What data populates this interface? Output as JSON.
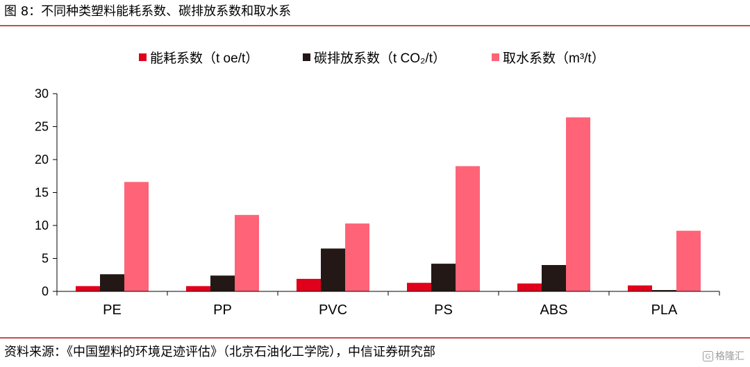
{
  "header": {
    "title": "图 8：不同种类塑料能耗系数、碳排放系数和取水系"
  },
  "footer": {
    "source": "资料来源：《中国塑料的环境足迹评估》（北京石油化工学院），中信证券研究部",
    "watermark": "格隆汇",
    "watermark_icon": "G"
  },
  "chart_data": {
    "type": "bar",
    "categories": [
      "PE",
      "PP",
      "PVC",
      "PS",
      "ABS",
      "PLA"
    ],
    "series": [
      {
        "name": "能耗系数（t oe/t）",
        "color": "#e0001b",
        "values": [
          0.8,
          0.8,
          1.9,
          1.3,
          1.2,
          0.9
        ]
      },
      {
        "name": "碳排放系数（t CO₂/t）",
        "color": "#231815",
        "values": [
          2.6,
          2.4,
          6.5,
          4.2,
          4.0,
          0.2
        ]
      },
      {
        "name": "取水系数（m³/t）",
        "color": "#ff6377",
        "values": [
          16.6,
          11.6,
          10.3,
          19.0,
          26.4,
          9.2
        ]
      }
    ],
    "ylim": [
      0,
      30
    ],
    "yticks": [
      "0",
      "5",
      "10",
      "15",
      "20",
      "25",
      "30"
    ],
    "legend_position": "top",
    "grid": false
  }
}
